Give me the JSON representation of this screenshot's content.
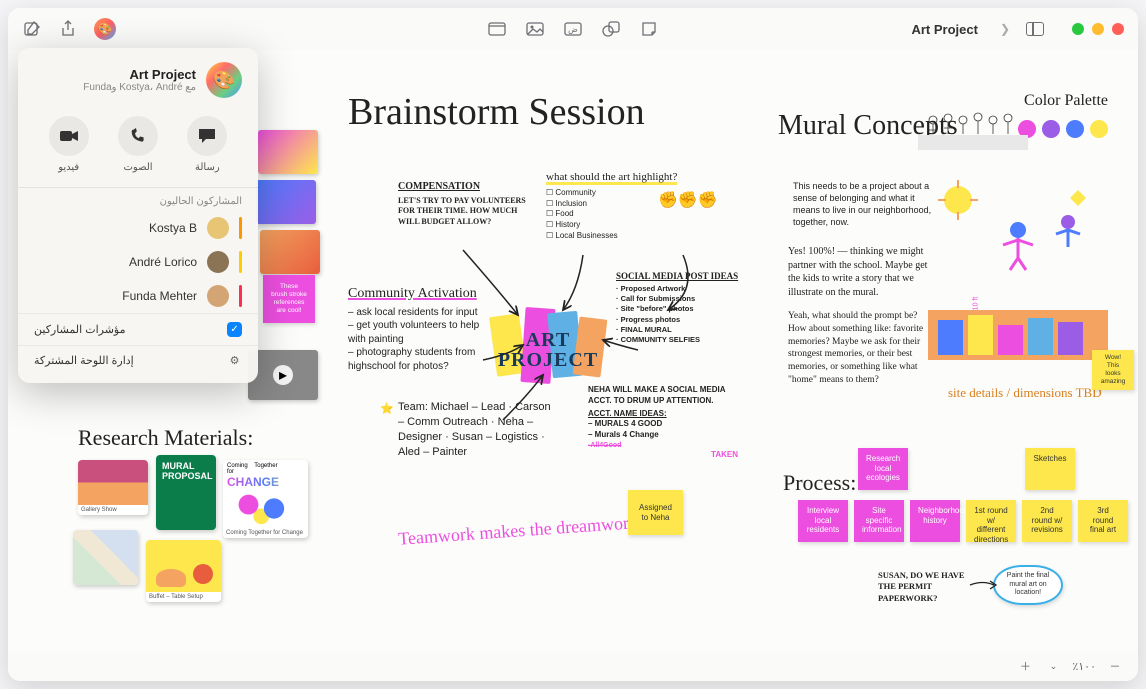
{
  "window": {
    "title": "Art Project"
  },
  "popover": {
    "title": "Art Project",
    "subtitle": "مع Kostya، André وFunda",
    "actions": {
      "message": "رسالة",
      "audio": "الصوت",
      "video": "فيديو"
    },
    "current_participants_label": "المشاركون الحاليون",
    "participants": [
      {
        "name": "Kostya B",
        "bar_color": "#ff9500",
        "avatar_bg": "#e8c574"
      },
      {
        "name": "André Lorico",
        "bar_color": "#ffcc00",
        "avatar_bg": "#8b7355"
      },
      {
        "name": "Funda Mehter",
        "bar_color": "#ff2d55",
        "avatar_bg": "#d4a574"
      }
    ],
    "cursors_label": "مؤشرات المشاركين",
    "cursors_checked": true,
    "manage_label": "إدارة اللوحة المشتركة"
  },
  "zoom": {
    "value": "٪١٠٠"
  },
  "canvas": {
    "brainstorm_title": "Brainstorm Session",
    "mural_title": "Mural Concepts",
    "research_title": "Research Materials:",
    "process_title": "Process:",
    "palette_title": "Color Palette",
    "palette_colors": [
      "#ec4fe0",
      "#9b5de5",
      "#4d7cff",
      "#fde74c"
    ],
    "compensation": {
      "heading": "COMPENSATION",
      "body": "LET'S TRY TO PAY VOLUNTEERS FOR THEIR TIME. HOW MUCH WILL BUDGET ALLOW?"
    },
    "highlight": {
      "heading": "what should the art highlight?",
      "items": [
        "Community",
        "Inclusion",
        "Food",
        "History",
        "Local Businesses"
      ]
    },
    "social_media": {
      "heading": "SOCIAL MEDIA POST IDEAS",
      "items": [
        "Proposed Artwork",
        "Call for Submissions",
        "Site \"before\" photos",
        "Progress photos",
        "FINAL MURAL",
        "COMMUNITY SELFIES"
      ]
    },
    "community_activation": {
      "heading": "Community Activation",
      "items": [
        "ask local residents for input",
        "get youth volunteers to help with painting",
        "photography students from highschool for photos?"
      ]
    },
    "team": {
      "heading": "Team:",
      "lines": [
        "Michael – Lead",
        "Carson – Comm Outreach",
        "Neha – Designer",
        "Susan – Logistics",
        "Aled – Painter"
      ]
    },
    "neha_note": {
      "heading": "NEHA WILL MAKE A SOCIAL MEDIA ACCT. TO DRUM UP ATTENTION.",
      "sub": "ACCT. NAME IDEAS:",
      "items": [
        "MURALS 4 GOOD",
        "Murals 4 Change"
      ],
      "taken": "TAKEN"
    },
    "teamwork": "Teamwork makes the dreamwork!!",
    "art_project_center": "ART PROJECT",
    "belonging_note": "This needs to be a project about a sense of belonging and what it means to live in our neighborhood, together, now.",
    "partner_note": "Yes! 100%! — thinking we might partner with the school. Maybe get the kids to write a story that we illustrate on the mural.",
    "prompt_note": "Yeah, what should the prompt be? How about something like: favorite memories? Maybe we ask for their strongest memories, or their best memories, or something like what \"home\" means to them?",
    "site_details": "site details / dimensions TBD",
    "sticky_assigned": "Assigned to Neha",
    "sticky_brush": "These brush stroke references are cool!",
    "sticky_wow": "Wow! This looks amazing",
    "process_stickies": {
      "row1": [
        "Research local ecologies",
        "",
        "Sketches"
      ],
      "row2": [
        "Interview local residents",
        "Site specific information",
        "Neighborhood history",
        "1st round w/ different directions",
        "2nd round w/ revisions",
        "3rd round final art"
      ]
    },
    "susan_note": "SUSAN, DO WE HAVE THE PERMIT PAPERWORK?",
    "paint_sticky": "Paint the final mural art on location!",
    "research_thumbs": {
      "mural_proposal": "MURAL PROPOSAL",
      "change": "Coming Together for CHANGE",
      "change_sub": "Coming Together for Change"
    }
  }
}
